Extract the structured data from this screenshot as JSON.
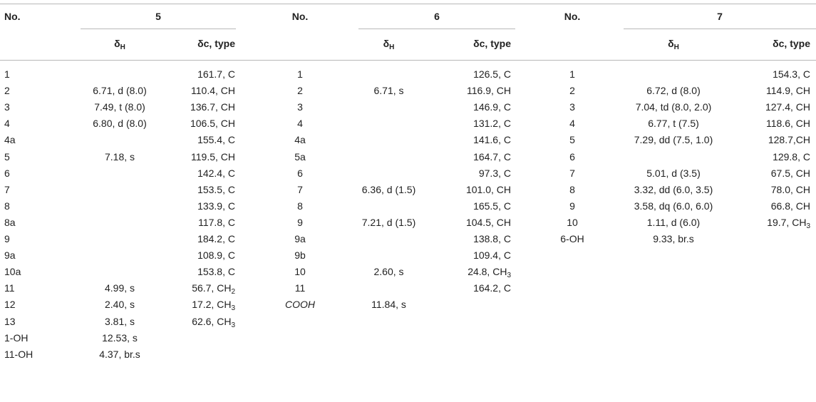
{
  "header": {
    "no_label": "No.",
    "compounds": [
      "5",
      "6",
      "7"
    ],
    "delta_h": "δ",
    "delta_h_sub": "H",
    "delta_c": "δc, type"
  },
  "groups": [
    {
      "compound": "5",
      "rows": [
        {
          "no": "1",
          "h": "",
          "c": "161.7, C"
        },
        {
          "no": "2",
          "h": "6.71, d (8.0)",
          "c": "110.4, CH"
        },
        {
          "no": "3",
          "h": "7.49, t (8.0)",
          "c": "136.7, CH"
        },
        {
          "no": "4",
          "h": "6.80, d (8.0)",
          "c": "106.5, CH"
        },
        {
          "no": "4a",
          "h": "",
          "c": "155.4, C"
        },
        {
          "no": "5",
          "h": "7.18, s",
          "c": "119.5, CH"
        },
        {
          "no": "6",
          "h": "",
          "c": "142.4, C"
        },
        {
          "no": "7",
          "h": "",
          "c": "153.5, C"
        },
        {
          "no": "8",
          "h": "",
          "c": "133.9, C"
        },
        {
          "no": "8a",
          "h": "",
          "c": "117.8, C"
        },
        {
          "no": "9",
          "h": "",
          "c": "184.2, C"
        },
        {
          "no": "9a",
          "h": "",
          "c": "108.9, C"
        },
        {
          "no": "10a",
          "h": "",
          "c": "153.8, C"
        },
        {
          "no": "11",
          "h": "4.99, s",
          "c": "56.7, CH",
          "c_sub": "2"
        },
        {
          "no": "12",
          "h": "2.40, s",
          "c": "17.2, CH",
          "c_sub": "3"
        },
        {
          "no": "13",
          "h": "3.81, s",
          "c": "62.6, CH",
          "c_sub": "3"
        },
        {
          "no": "1-OH",
          "h": "12.53, s",
          "c": ""
        },
        {
          "no": "11-OH",
          "h": "4.37, br.s",
          "c": ""
        }
      ]
    },
    {
      "compound": "6",
      "rows": [
        {
          "no": "1",
          "h": "",
          "c": "126.5, C"
        },
        {
          "no": "2",
          "h": "6.71, s",
          "c": "116.9, CH"
        },
        {
          "no": "3",
          "h": "",
          "c": "146.9, C"
        },
        {
          "no": "4",
          "h": "",
          "c": "131.2, C"
        },
        {
          "no": "4a",
          "h": "",
          "c": "141.6, C"
        },
        {
          "no": "5a",
          "h": "",
          "c": "164.7, C"
        },
        {
          "no": "6",
          "h": "",
          "c": "97.3, C"
        },
        {
          "no": "7",
          "h": "6.36, d (1.5)",
          "c": "101.0, CH"
        },
        {
          "no": "8",
          "h": "",
          "c": "165.5, C"
        },
        {
          "no": "9",
          "h": "7.21, d (1.5)",
          "c": "104.5, CH"
        },
        {
          "no": "9a",
          "h": "",
          "c": "138.8, C"
        },
        {
          "no": "9b",
          "h": "",
          "c": "109.4, C"
        },
        {
          "no": "10",
          "h": "2.60, s",
          "c": "24.8, CH",
          "c_sub": "3"
        },
        {
          "no": "11",
          "h": "",
          "c": "164.2, C"
        },
        {
          "no": "COOH",
          "h": "11.84, s",
          "c": "",
          "italic": true
        }
      ]
    },
    {
      "compound": "7",
      "rows": [
        {
          "no": "1",
          "h": "",
          "c": "154.3, C"
        },
        {
          "no": "2",
          "h": "6.72, d (8.0)",
          "c": "114.9, CH"
        },
        {
          "no": "3",
          "h": "7.04, td (8.0, 2.0)",
          "c": "127.4, CH"
        },
        {
          "no": "4",
          "h": "6.77, t (7.5)",
          "c": "118.6, CH"
        },
        {
          "no": "5",
          "h": "7.29, dd (7.5, 1.0)",
          "c": "128.7,CH"
        },
        {
          "no": "6",
          "h": "",
          "c": "129.8, C"
        },
        {
          "no": "7",
          "h": "5.01, d (3.5)",
          "c": "67.5, CH"
        },
        {
          "no": "8",
          "h": "3.32, dd (6.0, 3.5)",
          "c": "78.0, CH"
        },
        {
          "no": "9",
          "h": "3.58, dq (6.0, 6.0)",
          "c": "66.8, CH"
        },
        {
          "no": "10",
          "h": "1.11, d (6.0)",
          "c": "19.7, CH",
          "c_sub": "3"
        },
        {
          "no": "6-OH",
          "h": "9.33, br.s",
          "c": ""
        }
      ]
    }
  ]
}
